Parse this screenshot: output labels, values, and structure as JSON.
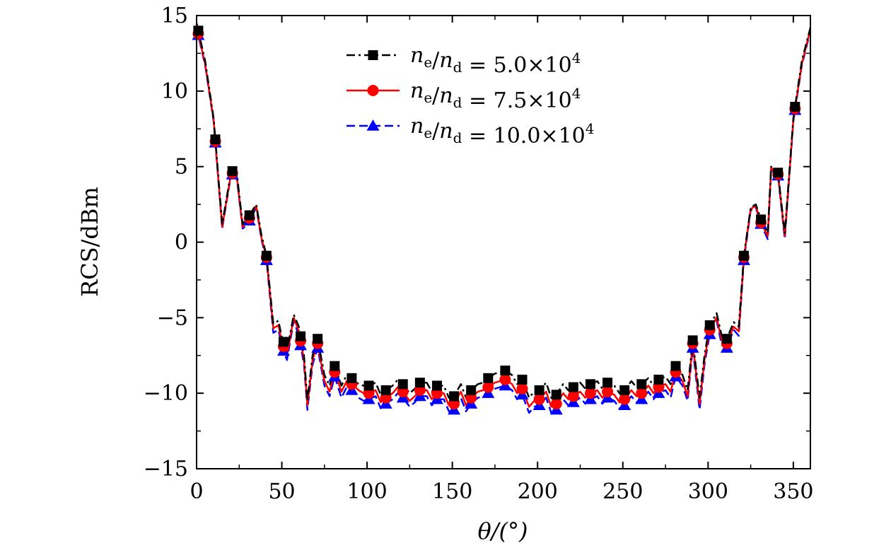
{
  "chart_data": {
    "type": "line",
    "xlabel": "θ/(°)",
    "ylabel": "RCS/dBm",
    "xlim": [
      0,
      360
    ],
    "ylim": [
      -15,
      15
    ],
    "x_ticks": [
      "0",
      "50",
      "100",
      "150",
      "200",
      "250",
      "300",
      "350"
    ],
    "y_ticks": [
      "−15",
      "−10",
      "−5",
      "0",
      "5",
      "10",
      "15"
    ],
    "legend_position": "top-center",
    "grid": false,
    "marker_x": [
      1,
      11,
      21,
      31,
      41,
      51,
      61,
      71,
      81,
      91,
      101,
      111,
      121,
      131,
      141,
      151,
      161,
      171,
      181,
      191,
      201,
      211,
      221,
      231,
      241,
      251,
      261,
      271,
      281,
      291,
      301,
      311,
      321,
      331,
      341,
      351
    ],
    "series": [
      {
        "name": "ne/nd = 5.0×10⁴",
        "legend": {
          "num": "n",
          "num_sub": "e",
          "den": "n",
          "den_sub": "d",
          "value": "5.0",
          "exp": "4"
        },
        "color": "#000000",
        "marker": "square",
        "dash": "dashdot",
        "x": [
          0,
          5,
          10,
          15,
          20,
          23,
          27,
          30,
          35,
          38,
          41,
          45,
          48,
          50,
          53,
          57,
          60,
          63,
          65,
          68,
          71,
          75,
          78,
          81,
          85,
          88,
          91,
          95,
          98,
          101,
          105,
          108,
          111,
          115,
          118,
          121,
          125,
          128,
          131,
          135,
          138,
          141,
          145,
          148,
          151,
          155,
          158,
          161,
          165,
          168,
          171,
          175,
          178,
          181,
          185,
          188,
          191,
          195,
          198,
          201,
          205,
          208,
          211,
          215,
          218,
          221,
          225,
          228,
          231,
          235,
          238,
          241,
          245,
          248,
          251,
          255,
          258,
          261,
          265,
          268,
          271,
          275,
          278,
          281,
          285,
          288,
          291,
          295,
          298,
          301,
          305,
          308,
          311,
          315,
          318,
          321,
          325,
          328,
          331,
          335,
          337,
          341,
          345,
          350,
          355,
          360
        ],
        "y": [
          14.5,
          12,
          8.2,
          1.2,
          4.5,
          5.1,
          1.2,
          1.6,
          2.5,
          0.5,
          -0.9,
          -5.4,
          -5.2,
          -6.3,
          -7.2,
          -4.8,
          -5.6,
          -7.5,
          -10.5,
          -7.5,
          -6.4,
          -8.8,
          -9.5,
          -8.2,
          -9.5,
          -8.8,
          -9.0,
          -9.4,
          -9.5,
          -9.5,
          -9.3,
          -10.1,
          -9.8,
          -9.5,
          -9.1,
          -9.4,
          -10.0,
          -9.7,
          -9.3,
          -9.3,
          -9.9,
          -9.5,
          -9.5,
          -10.3,
          -10.2,
          -9.4,
          -10.3,
          -9.8,
          -9.4,
          -9.3,
          -9.0,
          -8.7,
          -8.6,
          -8.5,
          -8.8,
          -9.4,
          -9.1,
          -10.3,
          -9.9,
          -9.8,
          -9.3,
          -10.3,
          -10.1,
          -9.4,
          -9.8,
          -9.6,
          -9.3,
          -9.7,
          -9.4,
          -9.2,
          -9.7,
          -9.3,
          -9.5,
          -10.0,
          -9.8,
          -9.2,
          -9.6,
          -9.4,
          -9.0,
          -9.5,
          -9.1,
          -8.9,
          -9.4,
          -8.2,
          -8.8,
          -9.8,
          -6.5,
          -10.3,
          -7.4,
          -5.5,
          -4.7,
          -6.2,
          -6.4,
          -5.3,
          -5.6,
          -0.9,
          2.3,
          2.5,
          1.5,
          0.6,
          5.0,
          4.6,
          0.6,
          8.2,
          12,
          14.2
        ]
      },
      {
        "name": "ne/nd = 7.5×10⁴",
        "legend": {
          "num": "n",
          "num_sub": "e",
          "den": "n",
          "den_sub": "d",
          "value": "7.5",
          "exp": "4"
        },
        "color": "#ff0000",
        "marker": "circle",
        "dash": "solid",
        "x": [
          0,
          5,
          10,
          15,
          20,
          23,
          27,
          30,
          35,
          38,
          41,
          45,
          48,
          50,
          53,
          57,
          60,
          63,
          65,
          68,
          71,
          75,
          78,
          81,
          85,
          88,
          91,
          95,
          98,
          101,
          105,
          108,
          111,
          115,
          118,
          121,
          125,
          128,
          131,
          135,
          138,
          141,
          145,
          148,
          151,
          155,
          158,
          161,
          165,
          168,
          171,
          175,
          178,
          181,
          185,
          188,
          191,
          195,
          198,
          201,
          205,
          208,
          211,
          215,
          218,
          221,
          225,
          228,
          231,
          235,
          238,
          241,
          245,
          248,
          251,
          255,
          258,
          261,
          265,
          268,
          271,
          275,
          278,
          281,
          285,
          288,
          291,
          295,
          298,
          301,
          305,
          308,
          311,
          315,
          318,
          321,
          325,
          328,
          331,
          335,
          337,
          341,
          345,
          350,
          355,
          360
        ],
        "y": [
          14.3,
          11.8,
          8.1,
          1.0,
          4.4,
          4.9,
          1.0,
          1.4,
          2.4,
          0.3,
          -1.0,
          -5.7,
          -5.5,
          -6.6,
          -7.5,
          -5.0,
          -5.9,
          -7.8,
          -10.8,
          -7.8,
          -6.7,
          -9.2,
          -9.9,
          -8.6,
          -9.9,
          -9.2,
          -9.4,
          -9.8,
          -10.0,
          -10.0,
          -9.8,
          -10.6,
          -10.3,
          -10.0,
          -9.6,
          -9.9,
          -10.5,
          -10.2,
          -9.8,
          -9.8,
          -10.4,
          -10.0,
          -10.0,
          -10.8,
          -10.7,
          -9.9,
          -10.8,
          -10.3,
          -9.9,
          -9.8,
          -9.6,
          -9.3,
          -9.2,
          -9.1,
          -9.4,
          -10.0,
          -9.7,
          -10.9,
          -10.5,
          -10.4,
          -9.9,
          -10.9,
          -10.7,
          -10.0,
          -10.4,
          -10.2,
          -9.9,
          -10.3,
          -10.0,
          -9.8,
          -10.3,
          -9.9,
          -10.1,
          -10.6,
          -10.4,
          -9.8,
          -10.2,
          -10.0,
          -9.5,
          -10.0,
          -9.6,
          -9.4,
          -9.9,
          -8.6,
          -9.2,
          -10.2,
          -6.7,
          -10.7,
          -7.7,
          -5.8,
          -5.0,
          -6.5,
          -6.7,
          -5.6,
          -5.9,
          -1.0,
          2.2,
          2.4,
          1.3,
          0.4,
          4.9,
          4.5,
          0.4,
          8.1,
          11.8,
          14.1
        ]
      },
      {
        "name": "ne/nd = 10.0×10⁴",
        "legend": {
          "num": "n",
          "num_sub": "e",
          "den": "n",
          "den_sub": "d",
          "value": "10.0",
          "exp": "4"
        },
        "color": "#0000ff",
        "marker": "triangle",
        "dash": "dashed",
        "x": [
          0,
          5,
          10,
          15,
          20,
          23,
          27,
          30,
          35,
          38,
          41,
          45,
          48,
          50,
          53,
          57,
          60,
          63,
          65,
          68,
          71,
          75,
          78,
          81,
          85,
          88,
          91,
          95,
          98,
          101,
          105,
          108,
          111,
          115,
          118,
          121,
          125,
          128,
          131,
          135,
          138,
          141,
          145,
          148,
          151,
          155,
          158,
          161,
          165,
          168,
          171,
          175,
          178,
          181,
          185,
          188,
          191,
          195,
          198,
          201,
          205,
          208,
          211,
          215,
          218,
          221,
          225,
          228,
          231,
          235,
          238,
          241,
          245,
          248,
          251,
          255,
          258,
          261,
          265,
          268,
          271,
          275,
          278,
          281,
          285,
          288,
          291,
          295,
          298,
          301,
          305,
          308,
          311,
          315,
          318,
          321,
          325,
          328,
          331,
          335,
          337,
          341,
          345,
          350,
          355,
          360
        ],
        "y": [
          14.2,
          11.7,
          8.0,
          0.9,
          4.3,
          4.8,
          0.9,
          1.2,
          2.3,
          0.2,
          -1.2,
          -6.0,
          -5.8,
          -6.9,
          -7.8,
          -5.2,
          -6.2,
          -8.1,
          -11.1,
          -8.1,
          -7.0,
          -9.5,
          -10.2,
          -8.9,
          -10.3,
          -9.6,
          -9.8,
          -10.3,
          -10.5,
          -10.4,
          -10.2,
          -11.0,
          -10.7,
          -10.4,
          -10.0,
          -10.3,
          -10.9,
          -10.6,
          -10.2,
          -10.2,
          -10.8,
          -10.4,
          -10.4,
          -11.2,
          -11.1,
          -10.3,
          -11.2,
          -10.7,
          -10.3,
          -10.2,
          -10.0,
          -9.7,
          -9.6,
          -9.5,
          -9.8,
          -10.4,
          -10.1,
          -11.3,
          -10.9,
          -10.8,
          -10.3,
          -11.3,
          -11.1,
          -10.4,
          -10.8,
          -10.6,
          -10.3,
          -10.7,
          -10.4,
          -10.2,
          -10.7,
          -10.3,
          -10.5,
          -11.0,
          -10.8,
          -10.2,
          -10.6,
          -10.4,
          -9.9,
          -10.4,
          -10.0,
          -9.8,
          -10.3,
          -8.9,
          -9.5,
          -10.5,
          -7.0,
          -11.1,
          -8.0,
          -6.1,
          -5.2,
          -6.8,
          -7.0,
          -5.8,
          -6.2,
          -1.2,
          2.1,
          2.3,
          1.2,
          0.2,
          4.8,
          4.4,
          0.2,
          8.0,
          11.7,
          14.0
        ]
      }
    ]
  }
}
